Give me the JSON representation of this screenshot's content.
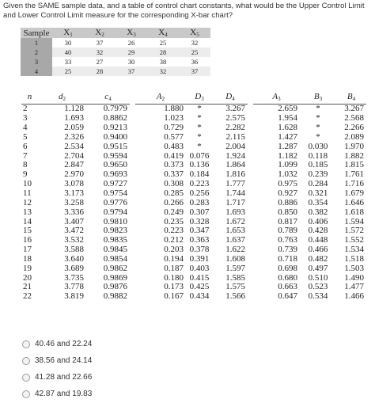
{
  "question": "Given the SAME sample data, and a table of control chart constants, what would be the Upper Control Limit and Lower Control Limit measure for the corresponding X-bar chart?",
  "sample_table": {
    "header_label": "Sample",
    "x_letter": "X",
    "x_indices": [
      "1",
      "2",
      "3",
      "4",
      "5"
    ],
    "rows": [
      {
        "sample": "1",
        "values": [
          "30",
          "37",
          "26",
          "25",
          "32"
        ]
      },
      {
        "sample": "2",
        "values": [
          "40",
          "32",
          "29",
          "28",
          "25"
        ]
      },
      {
        "sample": "3",
        "values": [
          "33",
          "27",
          "30",
          "38",
          "36"
        ]
      },
      {
        "sample": "4",
        "values": [
          "25",
          "28",
          "37",
          "32",
          "37"
        ]
      }
    ]
  },
  "constants_table": {
    "headers": [
      {
        "main": "n",
        "sub": ""
      },
      {
        "main": "d",
        "sub": "2"
      },
      {
        "main": "c",
        "sub": "4"
      },
      {
        "main": "A",
        "sub": "2"
      },
      {
        "main": "D",
        "sub": "3"
      },
      {
        "main": "D",
        "sub": "4"
      },
      {
        "main": "A",
        "sub": "3"
      },
      {
        "main": "B",
        "sub": "3"
      },
      {
        "main": "B",
        "sub": "4"
      }
    ],
    "rows": [
      [
        "2",
        "1.128",
        "0.7979",
        "1.880",
        "*",
        "3.267",
        "2.659",
        "*",
        "3.267"
      ],
      [
        "3",
        "1.693",
        "0.8862",
        "1.023",
        "*",
        "2.575",
        "1.954",
        "*",
        "2.568"
      ],
      [
        "4",
        "2.059",
        "0.9213",
        "0.729",
        "*",
        "2.282",
        "1.628",
        "*",
        "2.266"
      ],
      [
        "5",
        "2.326",
        "0.9400",
        "0.577",
        "*",
        "2.115",
        "1.427",
        "*",
        "2.089"
      ],
      [
        "6",
        "2.534",
        "0.9515",
        "0.483",
        "*",
        "2.004",
        "1.287",
        "0.030",
        "1.970"
      ],
      [
        "7",
        "2.704",
        "0.9594",
        "0.419",
        "0.076",
        "1.924",
        "1.182",
        "0.118",
        "1.882"
      ],
      [
        "8",
        "2.847",
        "0.9650",
        "0.373",
        "0.136",
        "1.864",
        "1.099",
        "0.185",
        "1.815"
      ],
      [
        "9",
        "2.970",
        "0.9693",
        "0.337",
        "0.184",
        "1.816",
        "1.032",
        "0.239",
        "1.761"
      ],
      [
        "10",
        "3.078",
        "0.9727",
        "0.308",
        "0.223",
        "1.777",
        "0.975",
        "0.284",
        "1.716"
      ],
      [
        "11",
        "3.173",
        "0.9754",
        "0.285",
        "0.256",
        "1.744",
        "0.927",
        "0.321",
        "1.679"
      ],
      [
        "12",
        "3.258",
        "0.9776",
        "0.266",
        "0.283",
        "1.717",
        "0.886",
        "0.354",
        "1.646"
      ],
      [
        "13",
        "3.336",
        "0.9794",
        "0.249",
        "0.307",
        "1.693",
        "0.850",
        "0.382",
        "1.618"
      ],
      [
        "14",
        "3.407",
        "0.9810",
        "0.235",
        "0.328",
        "1.672",
        "0.817",
        "0.406",
        "1.594"
      ],
      [
        "15",
        "3.472",
        "0.9823",
        "0.223",
        "0.347",
        "1.653",
        "0.789",
        "0.428",
        "1.572"
      ],
      [
        "16",
        "3.532",
        "0.9835",
        "0.212",
        "0.363",
        "1.637",
        "0.763",
        "0.448",
        "1.552"
      ],
      [
        "17",
        "3.588",
        "0.9845",
        "0.203",
        "0.378",
        "1.622",
        "0.739",
        "0.466",
        "1.534"
      ],
      [
        "18",
        "3.640",
        "0.9854",
        "0.194",
        "0.391",
        "1.608",
        "0.718",
        "0.482",
        "1.518"
      ],
      [
        "19",
        "3.689",
        "0.9862",
        "0.187",
        "0.403",
        "1.597",
        "0.698",
        "0.497",
        "1.503"
      ],
      [
        "20",
        "3.735",
        "0.9869",
        "0.180",
        "0.415",
        "1.585",
        "0.680",
        "0.510",
        "1.490"
      ],
      [
        "21",
        "3.778",
        "0.9876",
        "0.173",
        "0.425",
        "1.575",
        "0.663",
        "0.523",
        "1.477"
      ],
      [
        "22",
        "3.819",
        "0.9882",
        "0.167",
        "0.434",
        "1.566",
        "0.647",
        "0.534",
        "1.466"
      ]
    ]
  },
  "options": [
    {
      "label": "40.46 and 22.24"
    },
    {
      "label": "38.56 and 24.14"
    },
    {
      "label": "41.28 and 22.66"
    },
    {
      "label": "42.87 and 19.83"
    }
  ]
}
